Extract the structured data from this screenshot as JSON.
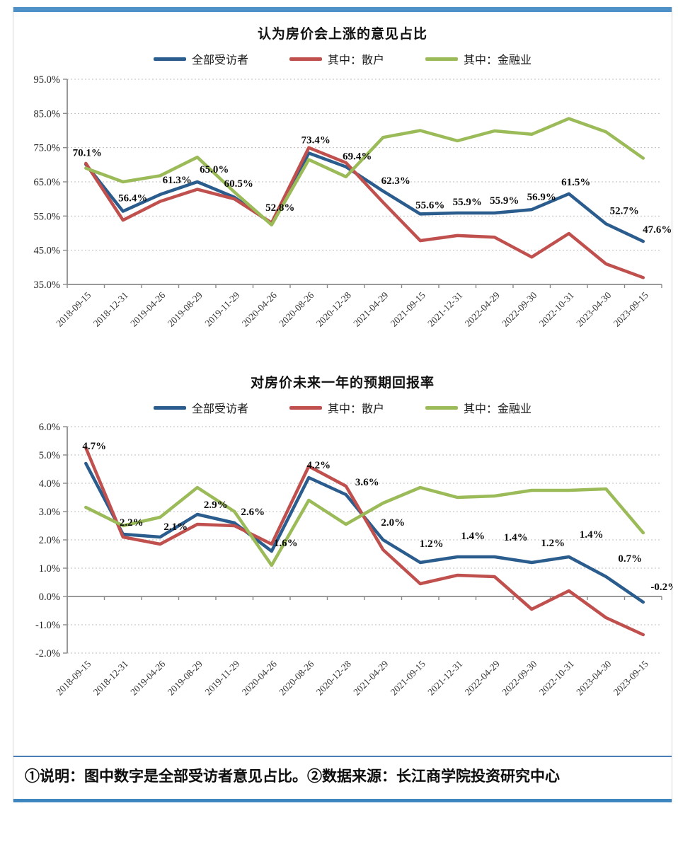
{
  "page": {
    "top_bar_color": "#4e91c9",
    "frame_border_color": "#d6d6d6",
    "footnote_top_border_color": "#4a7fb5",
    "footnote_bottom_border_color": "#3d86c0"
  },
  "footer": {
    "text": "①说明：图中数字是全部受访者意见占比。②数据来源：长江商学院投资研究中心"
  },
  "chart_data": [
    {
      "type": "line",
      "title": "认为房价会上涨的意见占比",
      "legend_position": "top",
      "grid": true,
      "categories": [
        "2018-09-15",
        "2018-12-31",
        "2019-04-26",
        "2019-08-29",
        "2019-11-29",
        "2020-04-26",
        "2020-08-26",
        "2020-12-28",
        "2021-04-29",
        "2021-09-15",
        "2021-12-31",
        "2022-04-29",
        "2022-09-30",
        "2022-10-31",
        "2023-04-30",
        "2023-09-15"
      ],
      "y_axis": {
        "min": 35,
        "max": 95,
        "step": 10,
        "baseline": 35,
        "tick_labels": [
          "95.0%",
          "85.0%",
          "75.0%",
          "65.0%",
          "55.0%",
          "45.0%",
          "35.0%"
        ]
      },
      "series": [
        {
          "name": "全部受访者",
          "color": "#2a5c8d",
          "values": [
            70.1,
            56.4,
            61.3,
            65.0,
            60.5,
            52.8,
            73.4,
            69.4,
            62.3,
            55.6,
            55.9,
            55.9,
            56.9,
            61.5,
            52.7,
            47.6
          ]
        },
        {
          "name": "其中：散户",
          "color": "#c0504d",
          "values": [
            70.4,
            53.8,
            59.3,
            62.8,
            60.0,
            53.0,
            75.0,
            70.6,
            59.0,
            47.8,
            49.3,
            48.8,
            43.0,
            49.9,
            41.0,
            37.0
          ]
        },
        {
          "name": "其中：金融业",
          "color": "#9bbb59",
          "values": [
            69.0,
            65.0,
            66.8,
            72.2,
            62.0,
            52.4,
            71.5,
            66.5,
            78.0,
            80.0,
            77.0,
            79.9,
            78.9,
            83.5,
            79.6,
            71.9
          ]
        }
      ],
      "data_labels": {
        "series": "全部受访者",
        "values": [
          "70.1%",
          "56.4%",
          "61.3%",
          "65.0%",
          "60.5%",
          "52.8%",
          "73.4%",
          "69.4%",
          "62.3%",
          "55.6%",
          "55.9%",
          "55.9%",
          "56.9%",
          "61.5%",
          "52.7%",
          "47.6%"
        ]
      }
    },
    {
      "type": "line",
      "title": "对房价未来一年的预期回报率",
      "legend_position": "top",
      "grid": true,
      "categories": [
        "2018-09-15",
        "2018-12-31",
        "2019-04-26",
        "2019-08-29",
        "2019-11-29",
        "2020-04-26",
        "2020-08-26",
        "2020-12-28",
        "2021-04-29",
        "2021-09-15",
        "2021-12-31",
        "2022-04-29",
        "2022-09-30",
        "2022-10-31",
        "2023-04-30",
        "2023-09-15"
      ],
      "y_axis": {
        "min": -2,
        "max": 6,
        "step": 1,
        "baseline": 0,
        "tick_labels": [
          "6.0%",
          "5.0%",
          "4.0%",
          "3.0%",
          "2.0%",
          "1.0%",
          "0.0%",
          "-1.0%",
          "-2.0%"
        ]
      },
      "series": [
        {
          "name": "全部受访者",
          "color": "#2a5c8d",
          "values": [
            4.7,
            2.2,
            2.1,
            2.9,
            2.6,
            1.6,
            4.2,
            3.6,
            2.0,
            1.2,
            1.4,
            1.4,
            1.2,
            1.4,
            0.7,
            -0.2
          ]
        },
        {
          "name": "其中：散户",
          "color": "#c0504d",
          "values": [
            5.25,
            2.1,
            1.85,
            2.55,
            2.5,
            1.85,
            4.6,
            3.9,
            1.65,
            0.45,
            0.75,
            0.7,
            -0.45,
            0.2,
            -0.75,
            -1.35
          ]
        },
        {
          "name": "其中：金融业",
          "color": "#9bbb59",
          "values": [
            3.15,
            2.5,
            2.8,
            3.85,
            3.0,
            1.1,
            3.4,
            2.55,
            3.3,
            3.85,
            3.5,
            3.55,
            3.75,
            3.75,
            3.8,
            2.25
          ]
        }
      ],
      "data_labels": {
        "series": "全部受访者",
        "values": [
          "4.7%",
          "2.2%",
          "2.1%",
          "2.9%",
          "2.6%",
          "1.6%",
          "4.2%",
          "3.6%",
          "2.0%",
          "1.2%",
          "1.4%",
          "1.4%",
          "1.2%",
          "1.4%",
          "0.7%",
          "-0.2%"
        ]
      }
    }
  ]
}
